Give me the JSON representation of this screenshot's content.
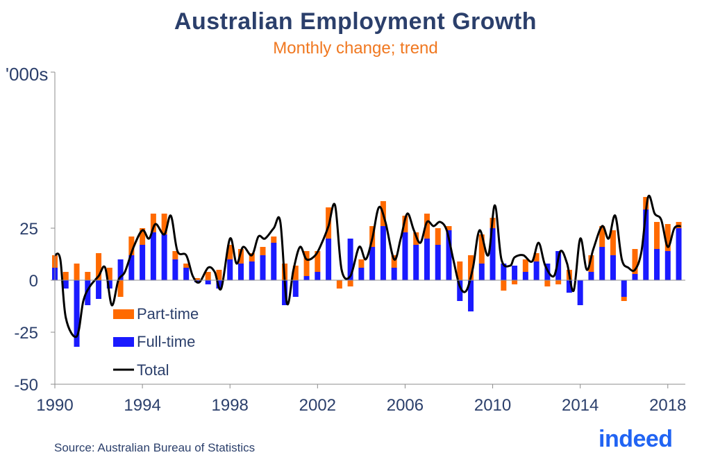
{
  "title": "Australian Employment Growth",
  "subtitle": "Monthly change; trend",
  "source": "Source: Australian Bureau of Statistics",
  "logo_text": "indeed",
  "colors": {
    "part_time": "#ff6a00",
    "full_time": "#1a1aff",
    "total": "#000000",
    "title": "#2b3f6b",
    "subtitle": "#f07820",
    "logo": "#2164f3"
  },
  "chart_data": {
    "type": "bar",
    "stacked": true,
    "ylabel": "'000s",
    "ylim": [
      -50,
      100
    ],
    "xlim": [
      1990,
      2018.8
    ],
    "yticks": [
      -50,
      -25,
      0,
      25
    ],
    "ytick_labels": [
      "-50",
      "-25",
      "0",
      "25"
    ],
    "xticks": [
      1990,
      1994,
      1998,
      2002,
      2006,
      2010,
      2014,
      2018
    ],
    "xtick_labels": [
      "1990",
      "1994",
      "1998",
      "2002",
      "2006",
      "2010",
      "2014",
      "2018"
    ],
    "legend": {
      "position": "bottom-left",
      "entries": [
        "Part-time",
        "Full-time",
        "Total"
      ]
    },
    "series": [
      {
        "name": "Part-time",
        "kind": "bar",
        "x": [
          1990.0,
          1990.5,
          1991.0,
          1991.5,
          1992.0,
          1992.5,
          1993.0,
          1993.5,
          1994.0,
          1994.5,
          1995.0,
          1995.5,
          1996.0,
          1996.5,
          1997.0,
          1997.5,
          1998.0,
          1998.5,
          1999.0,
          1999.5,
          2000.0,
          2000.5,
          2001.0,
          2001.5,
          2002.0,
          2002.5,
          2003.0,
          2003.5,
          2004.0,
          2004.5,
          2005.0,
          2005.5,
          2006.0,
          2006.5,
          2007.0,
          2007.5,
          2008.0,
          2008.5,
          2009.0,
          2009.5,
          2010.0,
          2010.5,
          2011.0,
          2011.5,
          2012.0,
          2012.5,
          2013.0,
          2013.5,
          2014.0,
          2014.5,
          2015.0,
          2015.5,
          2016.0,
          2016.5,
          2017.0,
          2017.5,
          2018.0,
          2018.5
        ],
        "values": [
          6,
          4,
          8,
          4,
          13,
          6,
          -8,
          9,
          8,
          9,
          10,
          4,
          2,
          1,
          4,
          5,
          7,
          7,
          4,
          4,
          3,
          8,
          7,
          12,
          10,
          15,
          -4,
          -3,
          4,
          10,
          12,
          6,
          8,
          6,
          12,
          8,
          2,
          9,
          12,
          14,
          5,
          -5,
          -2,
          6,
          4,
          -3,
          -2,
          5,
          0,
          8,
          10,
          12,
          -2,
          12,
          6,
          13,
          13,
          3
        ]
      },
      {
        "name": "Full-time",
        "kind": "bar",
        "x": [
          1990.0,
          1990.5,
          1991.0,
          1991.5,
          1992.0,
          1992.5,
          1993.0,
          1993.5,
          1994.0,
          1994.5,
          1995.0,
          1995.5,
          1996.0,
          1996.5,
          1997.0,
          1997.5,
          1998.0,
          1998.5,
          1999.0,
          1999.5,
          2000.0,
          2000.5,
          2001.0,
          2001.5,
          2002.0,
          2002.5,
          2003.0,
          2003.5,
          2004.0,
          2004.5,
          2005.0,
          2005.5,
          2006.0,
          2006.5,
          2007.0,
          2007.5,
          2008.0,
          2008.5,
          2009.0,
          2009.5,
          2010.0,
          2010.5,
          2011.0,
          2011.5,
          2012.0,
          2012.5,
          2013.0,
          2013.5,
          2014.0,
          2014.5,
          2015.0,
          2015.5,
          2016.0,
          2016.5,
          2017.0,
          2017.5,
          2018.0,
          2018.5
        ],
        "values": [
          6,
          -4,
          -32,
          -12,
          -9,
          -4,
          10,
          12,
          17,
          23,
          22,
          10,
          6,
          -1,
          -2,
          -4,
          10,
          8,
          9,
          12,
          18,
          -12,
          -8,
          2,
          4,
          20,
          0,
          20,
          6,
          16,
          26,
          6,
          23,
          17,
          20,
          17,
          24,
          -10,
          -15,
          8,
          25,
          8,
          7,
          4,
          9,
          8,
          14,
          -6,
          -12,
          4,
          16,
          12,
          -8,
          3,
          34,
          15,
          14,
          25
        ]
      }
    ],
    "total": {
      "name": "Total",
      "kind": "line",
      "x": [
        1990.0,
        1990.25,
        1990.5,
        1991.0,
        1991.3,
        1991.6,
        1992.0,
        1992.3,
        1992.6,
        1992.9,
        1993.2,
        1993.6,
        1994.0,
        1994.3,
        1994.6,
        1995.0,
        1995.3,
        1995.6,
        1996.0,
        1996.3,
        1996.6,
        1997.0,
        1997.3,
        1997.6,
        1998.0,
        1998.3,
        1998.6,
        1999.0,
        1999.3,
        1999.6,
        2000.0,
        2000.3,
        2000.6,
        2000.9,
        2001.2,
        2001.5,
        2001.9,
        2002.2,
        2002.5,
        2002.8,
        2003.1,
        2003.5,
        2003.9,
        2004.2,
        2004.5,
        2004.8,
        2005.1,
        2005.5,
        2005.8,
        2006.1,
        2006.4,
        2006.7,
        2007.0,
        2007.3,
        2007.6,
        2007.9,
        2008.2,
        2008.5,
        2008.8,
        2009.1,
        2009.4,
        2009.8,
        2010.1,
        2010.4,
        2010.8,
        2011.0,
        2011.4,
        2011.8,
        2012.1,
        2012.4,
        2012.8,
        2013.1,
        2013.4,
        2013.7,
        2014.0,
        2014.3,
        2014.6,
        2015.0,
        2015.3,
        2015.6,
        2015.9,
        2016.2,
        2016.5,
        2016.8,
        2017.1,
        2017.4,
        2017.7,
        2018.0,
        2018.3,
        2018.6
      ],
      "values": [
        12,
        10,
        -18,
        -27,
        -10,
        -3,
        2,
        6,
        -12,
        0,
        4,
        16,
        24,
        20,
        27,
        22,
        31,
        14,
        12,
        2,
        -1,
        6,
        4,
        -4,
        20,
        8,
        16,
        12,
        21,
        20,
        25,
        28,
        -11,
        5,
        16,
        10,
        12,
        18,
        26,
        36,
        5,
        2,
        16,
        10,
        20,
        35,
        28,
        10,
        20,
        32,
        24,
        18,
        28,
        26,
        28,
        24,
        10,
        -3,
        -5,
        6,
        24,
        12,
        36,
        10,
        7,
        11,
        12,
        9,
        18,
        7,
        2,
        14,
        8,
        -5,
        20,
        5,
        15,
        26,
        20,
        31,
        10,
        6,
        5,
        14,
        40,
        32,
        29,
        16,
        25,
        26
      ]
    }
  }
}
